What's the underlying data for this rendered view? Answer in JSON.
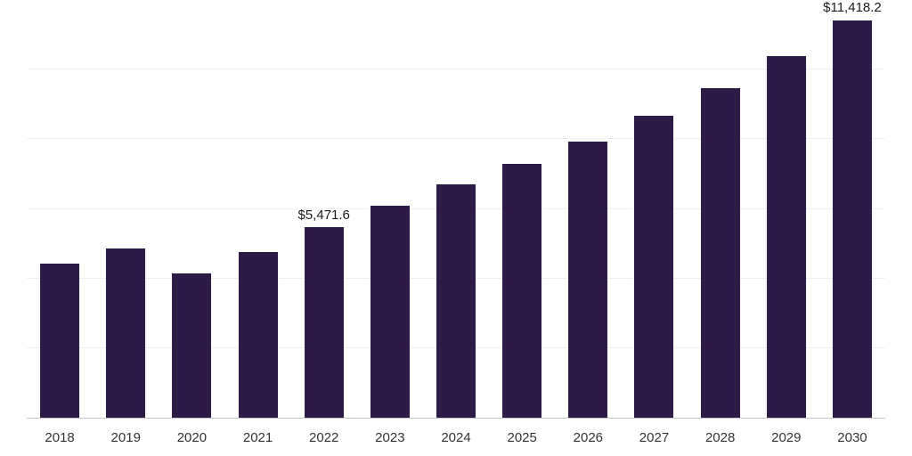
{
  "chart_data": {
    "type": "bar",
    "title": "",
    "xlabel": "",
    "ylabel": "",
    "categories": [
      "2018",
      "2019",
      "2020",
      "2021",
      "2022",
      "2023",
      "2024",
      "2025",
      "2026",
      "2027",
      "2028",
      "2029",
      "2030"
    ],
    "values": [
      4420,
      4850,
      4140,
      4750,
      5471.6,
      6080,
      6710,
      7300,
      7940,
      8680,
      9470,
      10390,
      11418.2
    ],
    "bar_labels": {
      "2022": "$5,471.6",
      "2030": "$11,418.2"
    },
    "ylim": [
      0,
      12000
    ],
    "gridline_step": 2000,
    "grid": "horizontal",
    "legend": "none",
    "colors": {
      "bar": "#2e1a47",
      "gridline": "#f0f0f0",
      "axis_line": "#c9c9c9",
      "value_label_text": "#1a1a1a",
      "tick_text": "#333333",
      "background": "#ffffff"
    }
  }
}
